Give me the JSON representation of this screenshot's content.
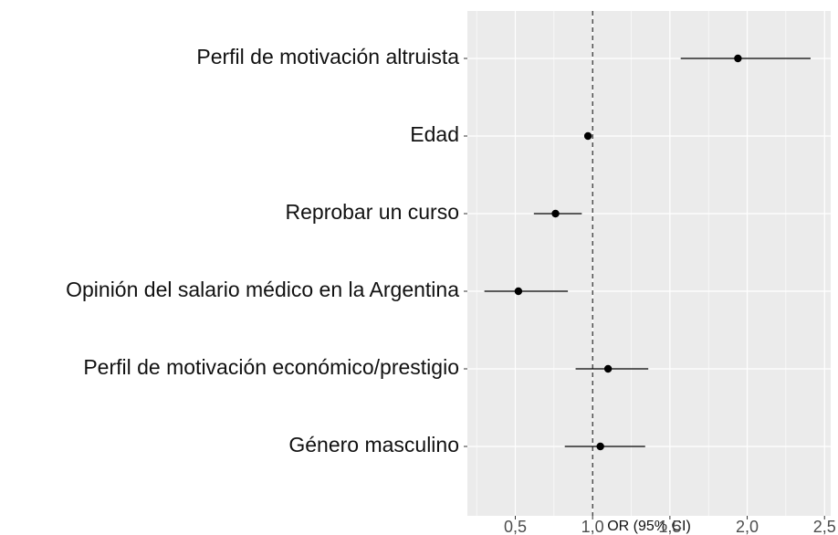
{
  "chart_data": {
    "type": "forest",
    "xlabel": "OR (95% CI)",
    "categories": [
      "Perfil de motivación altruista",
      "Edad",
      "Reprobar un curso",
      "Opinión del salario médico en la Argentina ",
      "Perfil de motivación económico/prestigio",
      "Género masculino"
    ],
    "values": [
      1.94,
      0.97,
      0.76,
      0.52,
      1.1,
      1.05
    ],
    "lower": [
      1.57,
      0.95,
      0.62,
      0.3,
      0.89,
      0.82
    ],
    "upper": [
      2.41,
      0.99,
      0.93,
      0.84,
      1.36,
      1.34
    ],
    "color": "#000000",
    "ref_line": 1,
    "xlim": [
      0.19,
      2.54
    ],
    "xticks": [
      {
        "value": 0.5,
        "label": "0,5"
      },
      {
        "value": 1.0,
        "label": "1,0"
      },
      {
        "value": 1.5,
        "label": "1,5"
      },
      {
        "value": 2.0,
        "label": "2,0"
      },
      {
        "value": 2.5,
        "label": "2,5"
      }
    ],
    "grid": true
  }
}
